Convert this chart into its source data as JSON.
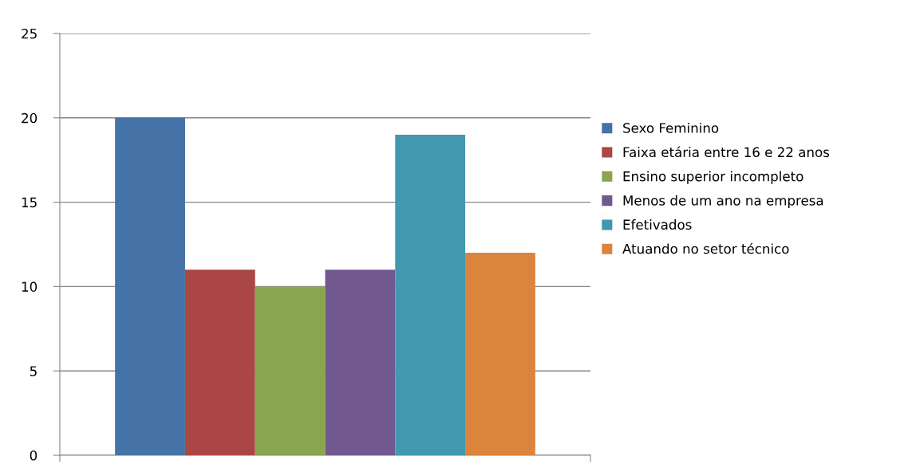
{
  "chart_data": {
    "type": "bar",
    "categories": [
      null
    ],
    "series": [
      {
        "name": "Sexo Feminino",
        "color": "#4572a7",
        "values": [
          20
        ]
      },
      {
        "name": "Faixa etária entre 16 e 22 anos",
        "color": "#aa4643",
        "values": [
          11
        ]
      },
      {
        "name": "Ensino superior incompleto",
        "color": "#89a54e",
        "values": [
          10
        ]
      },
      {
        "name": "Menos de um ano na empresa",
        "color": "#71588f",
        "values": [
          11
        ]
      },
      {
        "name": "Efetivados",
        "color": "#4198af",
        "values": [
          19
        ]
      },
      {
        "name": "Atuando no setor técnico",
        "color": "#db843d",
        "values": [
          12
        ]
      }
    ],
    "ylim": [
      0,
      25
    ],
    "yticks": [
      0,
      5,
      10,
      15,
      20,
      25
    ],
    "grid": "y",
    "legend": "right"
  }
}
